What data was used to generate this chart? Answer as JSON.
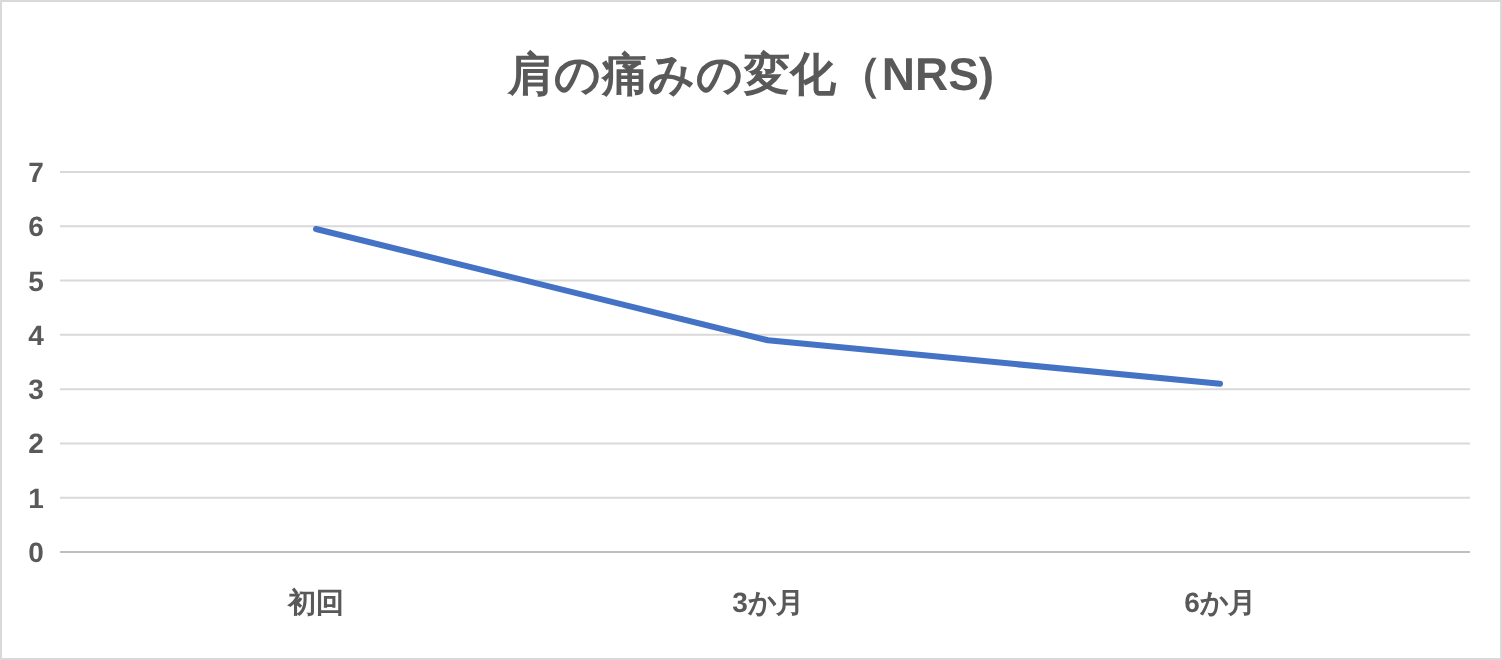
{
  "chart_data": {
    "type": "line",
    "title": "肩の痛みの変化（NRS)",
    "categories": [
      "初回",
      "3か月",
      "6か月"
    ],
    "series": [
      {
        "color": "#4472c4",
        "values": [
          5.95,
          3.9,
          3.1
        ]
      }
    ],
    "ylim": [
      0,
      7
    ],
    "yticks": [
      0,
      1,
      2,
      3,
      4,
      5,
      6,
      7
    ],
    "grid": "y",
    "marker": "none",
    "line_style": "solid"
  }
}
